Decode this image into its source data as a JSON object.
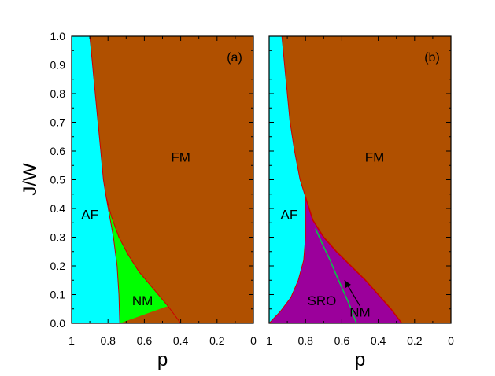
{
  "chart_data": {
    "type": "area",
    "ylabel": "J/W",
    "ylim": [
      0.0,
      1.0
    ],
    "y_ticks": [
      "0.0",
      "0.1",
      "0.2",
      "0.3",
      "0.4",
      "0.5",
      "0.6",
      "0.7",
      "0.8",
      "0.9",
      "1.0"
    ],
    "colors": {
      "AF": "#00ffff",
      "FM": "#b05000",
      "NM": "#00ff00",
      "SRO": "#9b009b",
      "boundary": "#cc0000",
      "boundary_nm": "#00cc44",
      "axis": "#000000"
    },
    "panels": [
      {
        "tag": "(a)",
        "xlabel": "p",
        "xlim": [
          1.0,
          0.0
        ],
        "x_ticks": [
          "1",
          "0.8",
          "0.6",
          "0.4",
          "0.2",
          "0"
        ],
        "regions": [
          {
            "name": "AF",
            "label": "AF",
            "label_at": [
              0.9,
              0.38
            ]
          },
          {
            "name": "FM",
            "label": "FM",
            "label_at": [
              0.4,
              0.58
            ]
          },
          {
            "name": "NM",
            "label": "NM",
            "label_at": [
              0.61,
              0.08
            ]
          }
        ],
        "boundaries": {
          "af_fm": [
            [
              0.9,
              1.0
            ],
            [
              0.885,
              0.9
            ],
            [
              0.87,
              0.8
            ],
            [
              0.855,
              0.7
            ],
            [
              0.84,
              0.6
            ],
            [
              0.825,
              0.5
            ],
            [
              0.81,
              0.44
            ]
          ],
          "af_nm": [
            [
              0.81,
              0.44
            ],
            [
              0.79,
              0.37
            ],
            [
              0.77,
              0.3
            ],
            [
              0.75,
              0.2
            ],
            [
              0.74,
              0.1
            ],
            [
              0.735,
              0.0
            ]
          ],
          "nm_fm": [
            [
              0.81,
              0.44
            ],
            [
              0.78,
              0.37
            ],
            [
              0.74,
              0.3
            ],
            [
              0.69,
              0.24
            ],
            [
              0.63,
              0.18
            ],
            [
              0.55,
              0.12
            ],
            [
              0.47,
              0.06
            ],
            [
              0.4,
              0.0
            ]
          ]
        }
      },
      {
        "tag": "(b)",
        "xlabel": "p",
        "xlim": [
          1.0,
          0.0
        ],
        "x_ticks": [
          "1",
          "0.8",
          "0.6",
          "0.4",
          "0.2",
          "0"
        ],
        "regions": [
          {
            "name": "AF",
            "label": "AF",
            "label_at": [
              0.89,
              0.38
            ]
          },
          {
            "name": "FM",
            "label": "FM",
            "label_at": [
              0.42,
              0.58
            ]
          },
          {
            "name": "SRO",
            "label": "SRO",
            "label_at": [
              0.71,
              0.08
            ]
          },
          {
            "name": "NM",
            "label": "NM",
            "label_at": [
              0.5,
              0.04
            ]
          }
        ],
        "annotation": {
          "text": "NM",
          "arrow_from": [
            0.5,
            0.06
          ],
          "arrow_to": [
            0.585,
            0.15
          ]
        },
        "boundaries": {
          "af_fm": [
            [
              0.93,
              1.0
            ],
            [
              0.915,
              0.9
            ],
            [
              0.9,
              0.8
            ],
            [
              0.885,
              0.7
            ],
            [
              0.86,
              0.6
            ],
            [
              0.83,
              0.5
            ],
            [
              0.8,
              0.44
            ]
          ],
          "af_sro": [
            [
              0.8,
              0.44
            ],
            [
              0.8,
              0.38
            ],
            [
              0.8,
              0.3
            ],
            [
              0.81,
              0.22
            ],
            [
              0.84,
              0.15
            ],
            [
              0.88,
              0.09
            ],
            [
              0.94,
              0.04
            ],
            [
              1.0,
              0.0
            ]
          ],
          "sro_fm": [
            [
              0.8,
              0.44
            ],
            [
              0.76,
              0.36
            ],
            [
              0.7,
              0.3
            ],
            [
              0.63,
              0.25
            ],
            [
              0.55,
              0.2
            ],
            [
              0.47,
              0.15
            ],
            [
              0.4,
              0.1
            ],
            [
              0.33,
              0.05
            ],
            [
              0.27,
              0.0
            ]
          ],
          "nm_line": [
            [
              0.745,
              0.33
            ],
            [
              0.71,
              0.28
            ],
            [
              0.665,
              0.22
            ],
            [
              0.625,
              0.16
            ],
            [
              0.59,
              0.11
            ],
            [
              0.555,
              0.06
            ],
            [
              0.52,
              0.0
            ]
          ]
        }
      }
    ]
  }
}
